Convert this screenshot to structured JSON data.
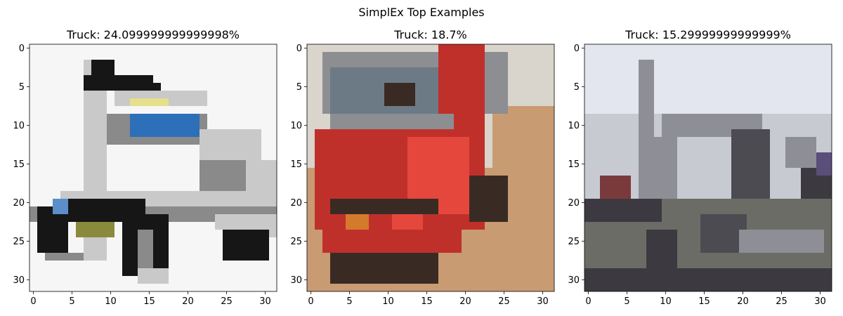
{
  "figure": {
    "suptitle": "SimplEx Top Examples"
  },
  "chart_data": [
    {
      "type": "heatmap",
      "title": "Truck: 24.099999999999998%",
      "xlim": [
        -0.5,
        31.5
      ],
      "ylim": [
        31.5,
        -0.5
      ],
      "x_ticks": [
        0,
        5,
        10,
        15,
        20,
        25,
        30
      ],
      "y_ticks": [
        0,
        5,
        10,
        15,
        20,
        25,
        30
      ],
      "image_grid": [
        32,
        32
      ],
      "palette": {
        "background": "#f6f6f6",
        "light_gray": "#c9c9c9",
        "mid_gray": "#8a8a8a",
        "dark": "#161616",
        "cab_window": "#2d6fb8",
        "cab_trim": "#e6df8c",
        "grille": "#8a8a3c",
        "headlight": "#5a8fc9"
      }
    },
    {
      "type": "heatmap",
      "title": "Truck: 18.7%",
      "xlim": [
        -0.5,
        31.5
      ],
      "ylim": [
        31.5,
        -0.5
      ],
      "x_ticks": [
        0,
        5,
        10,
        15,
        20,
        25,
        30
      ],
      "y_ticks": [
        0,
        5,
        10,
        15,
        20,
        25,
        30
      ],
      "image_grid": [
        32,
        32
      ],
      "palette": {
        "sky": "#d9d4cc",
        "truck_red": "#c0302b",
        "bright_red": "#e5473c",
        "windshield": "#6c7a86",
        "cab_gray": "#8c8e92",
        "ground": "#c99b73",
        "dark": "#3a2a24",
        "orange_light": "#d47a2c"
      }
    },
    {
      "type": "heatmap",
      "title": "Truck: 15.29999999999999%",
      "xlim": [
        -0.5,
        31.5
      ],
      "ylim": [
        31.5,
        -0.5
      ],
      "x_ticks": [
        0,
        5,
        10,
        15,
        20,
        25,
        30
      ],
      "y_ticks": [
        0,
        5,
        10,
        15,
        20,
        25,
        30
      ],
      "image_grid": [
        32,
        32
      ],
      "palette": {
        "sky": "#e3e6ee",
        "body_light": "#c8cad2",
        "body_mid": "#8e8f96",
        "dark": "#3c3a40",
        "ground": "#6b6c66",
        "trailer": "#4d4b52",
        "red_bit": "#7a3a3c",
        "purple_bit": "#5a4e7a"
      }
    }
  ]
}
